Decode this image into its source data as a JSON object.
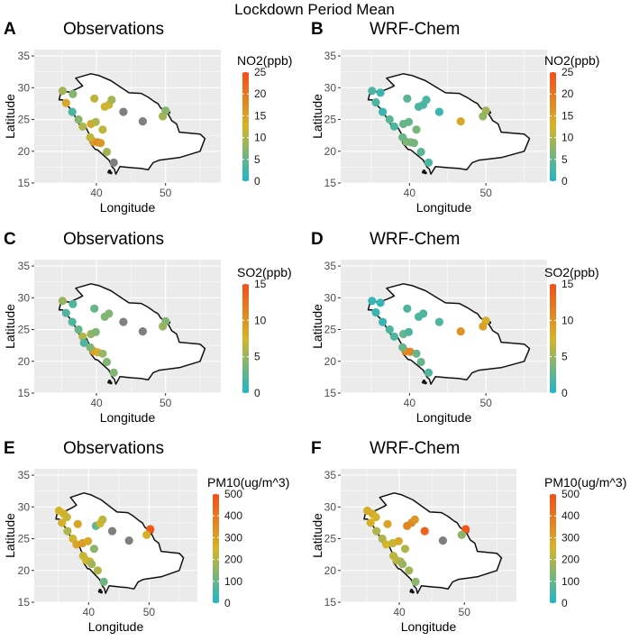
{
  "figure_title": "Lockdown Period Mean",
  "colors": {
    "panel_bg": "#ebebeb",
    "grid": "#ffffff",
    "na_point": "#7f7f7f",
    "scale_low": "#20b5c8",
    "scale_mid": "#d4b52a",
    "scale_high": "#f24f1a"
  },
  "chart_data": [
    {
      "label": "A",
      "title": "Observations",
      "type": "scatter",
      "xlabel": "Longitude",
      "ylabel": "Latitude",
      "xlim": [
        31,
        58
      ],
      "ylim": [
        15,
        36
      ],
      "xticks": [
        "40",
        "50"
      ],
      "yticks": [
        "15",
        "20",
        "25",
        "30",
        "35"
      ],
      "legend": {
        "title": "NO2(ppb)",
        "limits": [
          0,
          25
        ],
        "ticks": [
          "0",
          "5",
          "10",
          "15",
          "20",
          "25"
        ]
      },
      "points": [
        {
          "x": 35.1,
          "y": 29.5,
          "v": 9
        },
        {
          "x": 36.6,
          "y": 29.0,
          "v": 7
        },
        {
          "x": 35.6,
          "y": 27.6,
          "v": 14
        },
        {
          "x": 36.5,
          "y": 26.2,
          "v": 3
        },
        {
          "x": 37.4,
          "y": 25.0,
          "v": 7
        },
        {
          "x": 38.0,
          "y": 23.9,
          "v": 10
        },
        {
          "x": 39.2,
          "y": 24.3,
          "v": 14
        },
        {
          "x": 39.6,
          "y": 21.5,
          "v": 16
        },
        {
          "x": 40.2,
          "y": 21.4,
          "v": 17
        },
        {
          "x": 40.6,
          "y": 21.3,
          "v": 16
        },
        {
          "x": 39.1,
          "y": 22.2,
          "v": 11
        },
        {
          "x": 41.5,
          "y": 19.9,
          "v": 9
        },
        {
          "x": 39.9,
          "y": 24.6,
          "v": 10
        },
        {
          "x": 40.9,
          "y": 23.4,
          "v": 11
        },
        {
          "x": 41.2,
          "y": 27.0,
          "v": 12
        },
        {
          "x": 41.8,
          "y": 27.3,
          "v": 12
        },
        {
          "x": 42.2,
          "y": 28.1,
          "v": 9
        },
        {
          "x": 43.9,
          "y": 26.2,
          "v": null
        },
        {
          "x": 46.7,
          "y": 24.7,
          "v": null
        },
        {
          "x": 50.0,
          "y": 26.4,
          "v": 7
        },
        {
          "x": 49.6,
          "y": 25.5,
          "v": 9
        },
        {
          "x": 42.5,
          "y": 18.2,
          "v": null
        },
        {
          "x": 39.7,
          "y": 28.3,
          "v": 11
        }
      ]
    },
    {
      "label": "B",
      "title": "WRF-Chem",
      "type": "scatter",
      "xlabel": "Longitude",
      "ylabel": "Latitude",
      "xlim": [
        31,
        58
      ],
      "ylim": [
        15,
        36
      ],
      "xticks": [
        "40",
        "50"
      ],
      "yticks": [
        "15",
        "20",
        "25",
        "30",
        "35"
      ],
      "legend": {
        "title": "NO2(ppb)",
        "limits": [
          0,
          25
        ],
        "ticks": [
          "0",
          "5",
          "10",
          "15",
          "20",
          "25"
        ]
      },
      "points": [
        {
          "x": 35.1,
          "y": 29.5,
          "v": 3
        },
        {
          "x": 36.2,
          "y": 29.2,
          "v": 2
        },
        {
          "x": 35.6,
          "y": 27.7,
          "v": 3
        },
        {
          "x": 36.5,
          "y": 26.2,
          "v": 2
        },
        {
          "x": 37.4,
          "y": 25.0,
          "v": 4
        },
        {
          "x": 38.0,
          "y": 23.9,
          "v": 3
        },
        {
          "x": 39.2,
          "y": 24.3,
          "v": 5
        },
        {
          "x": 39.6,
          "y": 21.5,
          "v": 7
        },
        {
          "x": 40.2,
          "y": 21.4,
          "v": 6
        },
        {
          "x": 40.6,
          "y": 21.3,
          "v": 6
        },
        {
          "x": 39.1,
          "y": 22.2,
          "v": 5
        },
        {
          "x": 41.5,
          "y": 19.9,
          "v": 4
        },
        {
          "x": 39.9,
          "y": 24.6,
          "v": 5
        },
        {
          "x": 40.9,
          "y": 23.4,
          "v": 6
        },
        {
          "x": 41.2,
          "y": 27.0,
          "v": 3
        },
        {
          "x": 41.8,
          "y": 27.3,
          "v": 3
        },
        {
          "x": 42.2,
          "y": 28.1,
          "v": 3
        },
        {
          "x": 43.9,
          "y": 26.2,
          "v": 2
        },
        {
          "x": 46.7,
          "y": 24.7,
          "v": 14
        },
        {
          "x": 50.0,
          "y": 26.4,
          "v": 9
        },
        {
          "x": 49.6,
          "y": 25.5,
          "v": 8
        },
        {
          "x": 42.5,
          "y": 18.2,
          "v": 3
        },
        {
          "x": 39.7,
          "y": 28.3,
          "v": 4
        }
      ]
    },
    {
      "label": "C",
      "title": "Observations",
      "type": "scatter",
      "xlabel": "Longitude",
      "ylabel": "Latitude",
      "xlim": [
        31,
        58
      ],
      "ylim": [
        15,
        36
      ],
      "xticks": [
        "40",
        "50"
      ],
      "yticks": [
        "15",
        "20",
        "25",
        "30",
        "35"
      ],
      "legend": {
        "title": "SO2(ppb)",
        "limits": [
          0,
          15
        ],
        "ticks": [
          "0",
          "5",
          "10",
          "15"
        ]
      },
      "points": [
        {
          "x": 35.1,
          "y": 29.5,
          "v": 5
        },
        {
          "x": 36.6,
          "y": 29.0,
          "v": 2
        },
        {
          "x": 35.6,
          "y": 27.6,
          "v": 2
        },
        {
          "x": 36.5,
          "y": 26.2,
          "v": 2
        },
        {
          "x": 37.4,
          "y": 25.0,
          "v": 3
        },
        {
          "x": 38.0,
          "y": 23.9,
          "v": 6
        },
        {
          "x": 39.2,
          "y": 24.3,
          "v": 5
        },
        {
          "x": 39.6,
          "y": 21.6,
          "v": 9
        },
        {
          "x": 40.2,
          "y": 21.4,
          "v": 8
        },
        {
          "x": 39.1,
          "y": 22.2,
          "v": 4
        },
        {
          "x": 41.5,
          "y": 19.9,
          "v": 4
        },
        {
          "x": 40.9,
          "y": 21.2,
          "v": 5
        },
        {
          "x": 39.9,
          "y": 24.6,
          "v": 4
        },
        {
          "x": 41.2,
          "y": 27.0,
          "v": 4
        },
        {
          "x": 41.8,
          "y": 27.5,
          "v": 4
        },
        {
          "x": 43.9,
          "y": 26.2,
          "v": null
        },
        {
          "x": 46.7,
          "y": 24.7,
          "v": null
        },
        {
          "x": 50.0,
          "y": 26.3,
          "v": 4
        },
        {
          "x": 49.6,
          "y": 25.5,
          "v": 5
        },
        {
          "x": 42.5,
          "y": 18.2,
          "v": 4
        },
        {
          "x": 39.7,
          "y": 28.3,
          "v": 3
        },
        {
          "x": 38.2,
          "y": 22.9,
          "v": 2
        }
      ]
    },
    {
      "label": "D",
      "title": "WRF-Chem",
      "type": "scatter",
      "xlabel": "Longitude",
      "ylabel": "Latitude",
      "xlim": [
        31,
        58
      ],
      "ylim": [
        15,
        36
      ],
      "xticks": [
        "40",
        "50"
      ],
      "yticks": [
        "15",
        "20",
        "25",
        "30",
        "35"
      ],
      "legend": {
        "title": "SO2(ppb)",
        "limits": [
          0,
          15
        ],
        "ticks": [
          "0",
          "5",
          "10",
          "15"
        ]
      },
      "points": [
        {
          "x": 35.1,
          "y": 29.5,
          "v": 1
        },
        {
          "x": 36.2,
          "y": 29.2,
          "v": 1
        },
        {
          "x": 35.6,
          "y": 27.7,
          "v": 1
        },
        {
          "x": 36.5,
          "y": 26.2,
          "v": 1
        },
        {
          "x": 37.4,
          "y": 25.0,
          "v": 2
        },
        {
          "x": 38.0,
          "y": 23.9,
          "v": 2
        },
        {
          "x": 39.2,
          "y": 24.3,
          "v": 3
        },
        {
          "x": 39.5,
          "y": 21.6,
          "v": 11
        },
        {
          "x": 40.1,
          "y": 21.5,
          "v": 11
        },
        {
          "x": 39.1,
          "y": 22.2,
          "v": 3
        },
        {
          "x": 41.5,
          "y": 19.9,
          "v": 3
        },
        {
          "x": 40.9,
          "y": 21.2,
          "v": 3
        },
        {
          "x": 39.9,
          "y": 24.6,
          "v": 2
        },
        {
          "x": 41.2,
          "y": 27.0,
          "v": 2
        },
        {
          "x": 41.8,
          "y": 27.5,
          "v": 2
        },
        {
          "x": 43.9,
          "y": 26.2,
          "v": 2
        },
        {
          "x": 46.7,
          "y": 24.7,
          "v": 10
        },
        {
          "x": 50.0,
          "y": 26.4,
          "v": 8
        },
        {
          "x": 49.6,
          "y": 25.5,
          "v": 9
        },
        {
          "x": 42.5,
          "y": 18.2,
          "v": 2
        },
        {
          "x": 39.7,
          "y": 28.3,
          "v": 2
        }
      ]
    },
    {
      "label": "E",
      "title": "Observations",
      "type": "scatter",
      "xlabel": "Longitude",
      "ylabel": "Latitude",
      "xlim": [
        31,
        58
      ],
      "ylim": [
        15,
        36
      ],
      "xticks": [
        "40",
        "50"
      ],
      "yticks": [
        "15",
        "20",
        "25",
        "30",
        "35"
      ],
      "legend": {
        "title": "PM10(ug/m^3)",
        "limits": [
          0,
          500
        ],
        "ticks": [
          "0",
          "100",
          "200",
          "300",
          "400",
          "500"
        ]
      },
      "points": [
        {
          "x": 35.1,
          "y": 29.4,
          "v": 250
        },
        {
          "x": 35.9,
          "y": 28.9,
          "v": 260
        },
        {
          "x": 36.4,
          "y": 28.4,
          "v": 230
        },
        {
          "x": 35.6,
          "y": 27.5,
          "v": 260
        },
        {
          "x": 36.5,
          "y": 26.2,
          "v": 200
        },
        {
          "x": 37.4,
          "y": 25.0,
          "v": 240
        },
        {
          "x": 38.0,
          "y": 24.1,
          "v": 290
        },
        {
          "x": 39.0,
          "y": 24.3,
          "v": 310
        },
        {
          "x": 39.6,
          "y": 21.6,
          "v": 250
        },
        {
          "x": 40.2,
          "y": 21.4,
          "v": 230
        },
        {
          "x": 39.1,
          "y": 22.3,
          "v": 230
        },
        {
          "x": 41.5,
          "y": 20.0,
          "v": 200
        },
        {
          "x": 40.5,
          "y": 21.0,
          "v": 180
        },
        {
          "x": 39.9,
          "y": 24.6,
          "v": 280
        },
        {
          "x": 40.9,
          "y": 23.4,
          "v": 150
        },
        {
          "x": 41.2,
          "y": 27.0,
          "v": 90
        },
        {
          "x": 41.9,
          "y": 27.4,
          "v": 250
        },
        {
          "x": 42.3,
          "y": 28.0,
          "v": 220
        },
        {
          "x": 43.9,
          "y": 26.2,
          "v": null
        },
        {
          "x": 46.7,
          "y": 24.7,
          "v": null
        },
        {
          "x": 50.2,
          "y": 26.5,
          "v": 480
        },
        {
          "x": 49.6,
          "y": 25.6,
          "v": 260
        },
        {
          "x": 42.5,
          "y": 18.2,
          "v": 110
        },
        {
          "x": 38.2,
          "y": 27.3,
          "v": 290
        }
      ]
    },
    {
      "label": "F",
      "title": "WRF-Chem",
      "type": "scatter",
      "xlabel": "Longitude",
      "ylabel": "Latitude",
      "xlim": [
        31,
        58
      ],
      "ylim": [
        15,
        36
      ],
      "xticks": [
        "40",
        "50"
      ],
      "yticks": [
        "15",
        "20",
        "25",
        "30",
        "35"
      ],
      "legend": {
        "title": "PM10(ug/m^3)",
        "limits": [
          0,
          500
        ],
        "ticks": [
          "0",
          "100",
          "200",
          "300",
          "400",
          "500"
        ]
      },
      "points": [
        {
          "x": 35.1,
          "y": 29.4,
          "v": 270
        },
        {
          "x": 35.9,
          "y": 28.9,
          "v": 280
        },
        {
          "x": 36.4,
          "y": 28.4,
          "v": 250
        },
        {
          "x": 35.6,
          "y": 27.5,
          "v": 260
        },
        {
          "x": 36.5,
          "y": 26.2,
          "v": 200
        },
        {
          "x": 37.4,
          "y": 25.0,
          "v": 200
        },
        {
          "x": 38.0,
          "y": 24.1,
          "v": 250
        },
        {
          "x": 39.0,
          "y": 24.3,
          "v": 230
        },
        {
          "x": 39.6,
          "y": 21.6,
          "v": 210
        },
        {
          "x": 40.2,
          "y": 21.4,
          "v": 200
        },
        {
          "x": 39.1,
          "y": 22.3,
          "v": 220
        },
        {
          "x": 41.5,
          "y": 20.0,
          "v": 180
        },
        {
          "x": 40.5,
          "y": 21.0,
          "v": 170
        },
        {
          "x": 39.9,
          "y": 24.6,
          "v": 280
        },
        {
          "x": 40.9,
          "y": 23.4,
          "v": 200
        },
        {
          "x": 41.2,
          "y": 27.0,
          "v": 370
        },
        {
          "x": 41.9,
          "y": 27.5,
          "v": 360
        },
        {
          "x": 42.4,
          "y": 28.0,
          "v": 320
        },
        {
          "x": 43.9,
          "y": 26.2,
          "v": 450
        },
        {
          "x": 46.7,
          "y": 24.7,
          "v": null
        },
        {
          "x": 50.2,
          "y": 26.5,
          "v": 480
        },
        {
          "x": 49.6,
          "y": 25.6,
          "v": 150
        },
        {
          "x": 42.5,
          "y": 18.2,
          "v": 150
        },
        {
          "x": 38.2,
          "y": 27.3,
          "v": 300
        }
      ]
    }
  ]
}
